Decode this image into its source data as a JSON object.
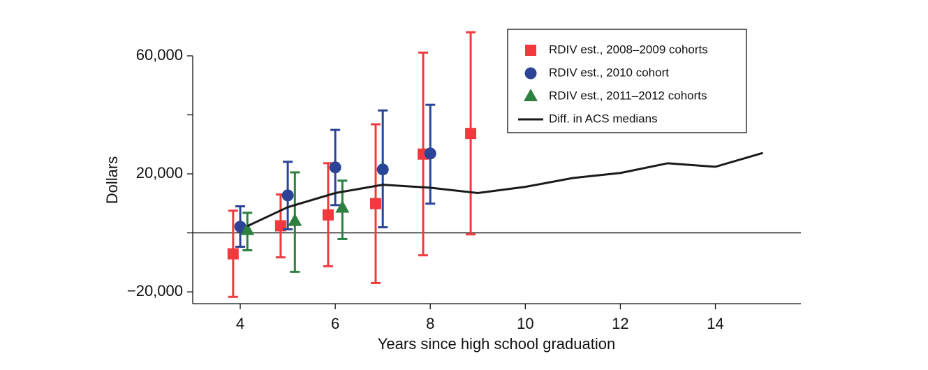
{
  "chart_data": {
    "type": "errorbar",
    "x_label": "Years since high school graduation",
    "y_label": "Dollars",
    "xlim": [
      3,
      15.8
    ],
    "ylim": [
      -24000,
      60000
    ],
    "xticks": [
      4,
      6,
      8,
      10,
      12,
      14
    ],
    "yticks": [
      {
        "value": -20000,
        "label": "−20,000"
      },
      {
        "value": 20000,
        "label": "20,000"
      },
      {
        "value": 60000,
        "label": "60,000"
      }
    ],
    "yticks_unlabeled": [
      0,
      40000
    ],
    "reference_line": 0,
    "legend_position": "upper right",
    "series": [
      {
        "name": "RDIV est., 2008–2009 cohorts",
        "color": "#f03a3e",
        "marker": "square",
        "x": [
          3.85,
          4.85,
          5.85,
          6.85,
          7.85,
          8.85
        ],
        "values": [
          -7100,
          2400,
          6100,
          9900,
          26700,
          33700
        ],
        "lower": [
          -21700,
          -8300,
          -11300,
          -17000,
          -7600,
          -500
        ],
        "upper": [
          7500,
          13000,
          23600,
          36800,
          61100,
          68000
        ]
      },
      {
        "name": "RDIV est., 2010 cohort",
        "color": "#2b4496",
        "marker": "circle",
        "x": [
          4,
          5,
          6,
          7,
          8
        ],
        "values": [
          2100,
          12700,
          22200,
          21500,
          26900
        ],
        "lower": [
          -4700,
          1200,
          9400,
          1900,
          9900
        ],
        "upper": [
          9000,
          24100,
          34900,
          41500,
          43400
        ]
      },
      {
        "name": "RDIV est., 2011–2012 cohorts",
        "color": "#2d8040",
        "marker": "triangle",
        "x": [
          4.15,
          5.15,
          6.15
        ],
        "values": [
          900,
          4000,
          8500
        ],
        "lower": [
          -5900,
          -13200,
          -2100
        ],
        "upper": [
          6800,
          20500,
          17700
        ]
      },
      {
        "name": "Diff. in ACS medians",
        "color": "#1a1a1a",
        "marker": "line",
        "x": [
          4.15,
          5,
          6,
          7,
          8,
          9,
          10,
          11,
          12,
          13,
          14,
          15
        ],
        "values": [
          2300,
          8700,
          13500,
          16300,
          15300,
          13500,
          15600,
          18600,
          20300,
          23600,
          22400,
          27100
        ]
      }
    ]
  }
}
